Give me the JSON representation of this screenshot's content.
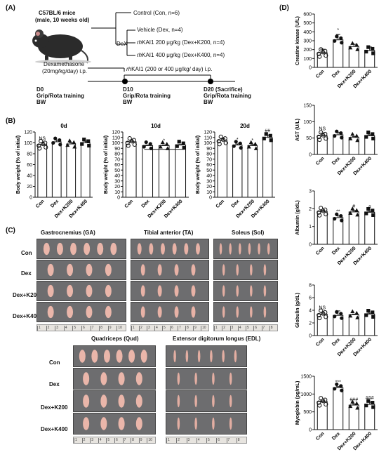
{
  "panel_labels": {
    "A": "(A)",
    "B": "(B)",
    "C": "(C)",
    "D": "(D)"
  },
  "panelA": {
    "mouse": "C57BL/6 mice",
    "mouse_sub": "(male, 10 weeks old)",
    "groups": [
      "Control (Con, n=6)",
      "Vehicle (Dex, n=4)",
      "200 μg/kg (Dex+K200, n=4)",
      "400 μg/kg (Dex+K400, n=4)"
    ],
    "drug_prefix": "rh",
    "drug_name": "KAI1",
    "dex_label": "DeX",
    "dexamethasone": "Dexamethasone",
    "dexamethasone_dose": "(20mg/kg/day) i.p.",
    "treatment_label_suffix": "(200 or 400 μg/kg/ day) i.p.",
    "timepoints": [
      {
        "day": "D0",
        "lines": [
          "Grip/Rota training",
          "BW"
        ]
      },
      {
        "day": "D10",
        "lines": [
          "Grip/Rota training",
          "BW"
        ]
      },
      {
        "day": "D20 (Sacrifice)",
        "lines": [
          "Grip/Rota training",
          "BW"
        ]
      }
    ]
  },
  "panelB": {
    "ylabel": "Body weight (% of initial)",
    "categories": [
      "Con",
      "Dex",
      "Dex+K200",
      "Dex+K400"
    ]
  },
  "panelC": {
    "row_labels": [
      "Con",
      "Dex",
      "Dex+K200",
      "Dex+K400"
    ],
    "muscles_top": [
      "Gastrocnemius (GA)",
      "Tibial anterior (TA)",
      "Soleus (Sol)"
    ],
    "muscles_bottom": [
      "Quadriceps (Qud)",
      "Extensor digitorum longus (EDL)"
    ],
    "ruler_ticks": [
      "1",
      "2",
      "3",
      "4",
      "5",
      "6",
      "7",
      "8",
      "9",
      "10"
    ]
  },
  "panelD": {
    "categories": [
      "Con",
      "Dex",
      "Dex+K200",
      "Dex+K400"
    ]
  },
  "colors": {
    "bar": "#ffffff",
    "stroke": "#111111",
    "muscle": "#e9b3a8",
    "background": "#6d6d6f"
  },
  "chart_data": [
    {
      "type": "bar",
      "title": "0d",
      "ylabel": "Body weight (% of initial)",
      "ylim": [
        0,
        120
      ],
      "yticks": [
        0,
        20,
        40,
        60,
        80,
        100,
        120
      ],
      "categories": [
        "Con",
        "Dex",
        "Dex+K200",
        "Dex+K400"
      ],
      "values": [
        97,
        102,
        98,
        100
      ],
      "errors": [
        3,
        3,
        2,
        3
      ],
      "annotations": [
        {
          "category": "Con",
          "text": "NS"
        }
      ]
    },
    {
      "type": "bar",
      "title": "10d",
      "ylabel": "Body weight (% of initial)",
      "ylim": [
        0,
        120
      ],
      "yticks": [
        0,
        10,
        20,
        30,
        40,
        50,
        60,
        70,
        80,
        90,
        100,
        110,
        120
      ],
      "categories": [
        "Con",
        "Dex",
        "Dex+K200",
        "Dex+K400"
      ],
      "values": [
        102,
        95,
        95,
        96
      ],
      "errors": [
        3,
        1,
        1,
        1
      ],
      "annotations": [
        {
          "category": "Dex+K200",
          "text": "*"
        }
      ]
    },
    {
      "type": "bar",
      "title": "20d",
      "ylabel": "Body weight (% of initial)",
      "ylim": [
        0,
        120
      ],
      "yticks": [
        0,
        10,
        20,
        30,
        40,
        50,
        60,
        70,
        80,
        90,
        100,
        110,
        120
      ],
      "categories": [
        "Con",
        "Dex",
        "Dex+K200",
        "Dex+K400"
      ],
      "values": [
        105,
        96,
        95,
        110
      ],
      "errors": [
        3,
        2,
        2,
        4
      ],
      "annotations": [
        {
          "category": "Dex",
          "text": "*"
        },
        {
          "category": "Dex+K200",
          "text": "*"
        },
        {
          "category": "Dex+K400",
          "text": "##"
        }
      ]
    },
    {
      "type": "bar",
      "ylabel": "Creatine kinase (U/L)",
      "ylim": [
        0,
        600
      ],
      "yticks": [
        0,
        100,
        200,
        300,
        400,
        500,
        600
      ],
      "categories": [
        "Con",
        "Dex",
        "Dex+K200",
        "Dex+K400"
      ],
      "values": [
        165,
        310,
        235,
        190
      ],
      "errors": [
        40,
        60,
        25,
        40
      ],
      "annotations": [
        {
          "category": "Dex",
          "text": "*"
        }
      ]
    },
    {
      "type": "bar",
      "ylabel": "AST (U/L)",
      "ylim": [
        0,
        150
      ],
      "yticks": [
        0,
        50,
        100,
        150
      ],
      "categories": [
        "Con",
        "Dex",
        "Dex+K200",
        "Dex+K400"
      ],
      "values": [
        57,
        60,
        52,
        57
      ],
      "errors": [
        8,
        7,
        3,
        3
      ],
      "annotations": [
        {
          "category": "Con",
          "text": "NS"
        }
      ]
    },
    {
      "type": "bar",
      "ylabel": "Albumin (g/dL)",
      "ylim": [
        0,
        3
      ],
      "yticks": [
        0,
        1,
        2,
        3
      ],
      "categories": [
        "Con",
        "Dex",
        "Dex+K200",
        "Dex+K400"
      ],
      "values": [
        1.85,
        1.5,
        1.82,
        1.8
      ],
      "errors": [
        0.05,
        0.1,
        0.08,
        0.05
      ],
      "annotations": [
        {
          "category": "Dex",
          "text": "**"
        },
        {
          "category": "Dex+K200",
          "text": "#"
        },
        {
          "category": "Dex+K400",
          "text": "#"
        }
      ]
    },
    {
      "type": "bar",
      "ylabel": "Globulin (g/dL)",
      "ylim": [
        0,
        8
      ],
      "yticks": [
        0,
        2,
        4,
        6,
        8
      ],
      "categories": [
        "Con",
        "Dex",
        "Dex+K200",
        "Dex+K400"
      ],
      "values": [
        3.4,
        3.2,
        3.3,
        3.4
      ],
      "errors": [
        0.3,
        0.7,
        0.1,
        0.15
      ],
      "annotations": [
        {
          "category": "Con",
          "text": "NS"
        }
      ]
    },
    {
      "type": "bar",
      "ylabel": "Myoglobin (pg/mL)",
      "ylim": [
        0,
        1500
      ],
      "yticks": [
        0,
        500,
        1000,
        1500
      ],
      "categories": [
        "Con",
        "Dex",
        "Dex+K200",
        "Dex+K400"
      ],
      "values": [
        790,
        1180,
        690,
        710
      ],
      "errors": [
        20,
        30,
        30,
        60
      ],
      "annotations": [
        {
          "category": "Dex",
          "text": "***"
        },
        {
          "category": "Dex+K200",
          "text": "###"
        },
        {
          "category": "Dex+K400",
          "text": "###"
        }
      ]
    }
  ]
}
